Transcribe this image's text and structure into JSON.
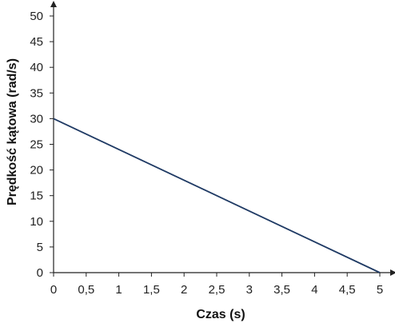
{
  "chart_data": {
    "type": "line",
    "xlabel": "Czas (s)",
    "ylabel": "Prędkość kątowa  (rad/s)",
    "xlim": [
      0,
      5
    ],
    "ylim": [
      0,
      50
    ],
    "x_ticks": [
      0,
      0.5,
      1,
      1.5,
      2,
      2.5,
      3,
      3.5,
      4,
      4.5,
      5
    ],
    "x_tick_labels": [
      "0",
      "0,5",
      "1",
      "1,5",
      "2",
      "2,5",
      "3",
      "3,5",
      "4",
      "4,5",
      "5"
    ],
    "y_ticks": [
      0,
      5,
      10,
      15,
      20,
      25,
      30,
      35,
      40,
      45,
      50
    ],
    "y_tick_labels": [
      "0",
      "5",
      "10",
      "15",
      "20",
      "25",
      "30",
      "35",
      "40",
      "45",
      "50"
    ],
    "grid": false,
    "series": [
      {
        "x": [
          0,
          5
        ],
        "y": [
          30,
          0
        ],
        "color": "#1f3a64"
      }
    ]
  }
}
